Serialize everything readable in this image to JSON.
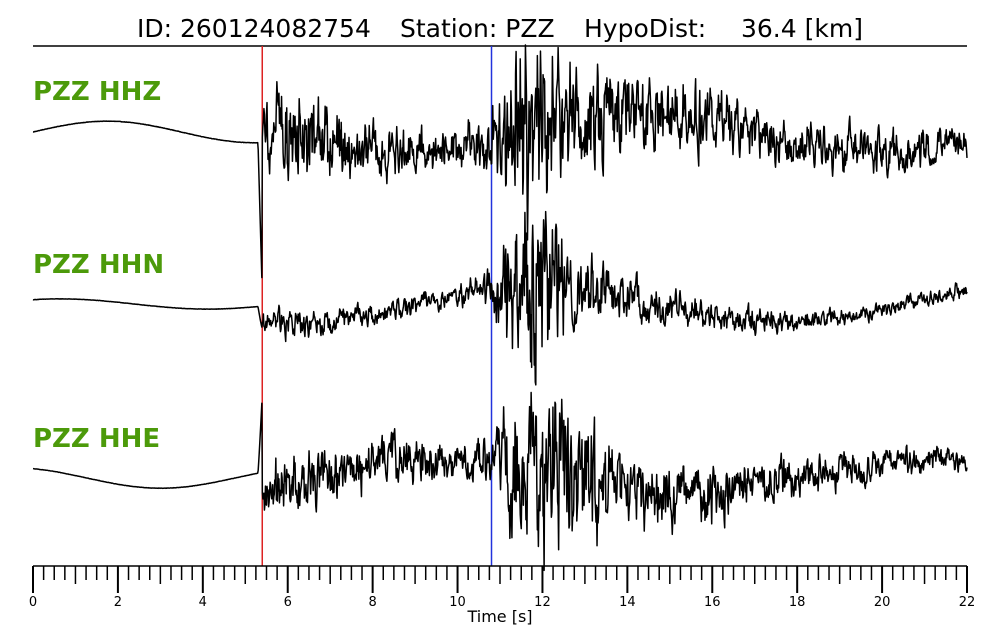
{
  "header": {
    "id_text": "ID: 260124082754",
    "station_text": "Station: PZZ",
    "hypodist_label": "HypoDist:",
    "hypodist_value": "36.4 [km]"
  },
  "colors": {
    "trace": "#000000",
    "channel_label": "#4c9a0a",
    "p_pick": "#dd2222",
    "s_pick": "#2233dd"
  },
  "chart_data": {
    "type": "line",
    "title": "ID: 260124082754   Station: PZZ   HypoDist:    36.4 [km]",
    "xlabel": "Time [s]",
    "xlim": [
      0,
      22
    ],
    "x_ticks": [
      0,
      2,
      4,
      6,
      8,
      10,
      12,
      14,
      16,
      18,
      20,
      22
    ],
    "minor_tick_step": 0.25,
    "grid": false,
    "picks": [
      {
        "phase": "P",
        "time": 5.4,
        "color": "#dd2222"
      },
      {
        "phase": "S",
        "time": 10.8,
        "color": "#2233dd"
      }
    ],
    "series": [
      {
        "name": "PZZ HHZ",
        "peak_amplitude": 1.0,
        "envelope": {
          "time": [
            0,
            5.3,
            5.4,
            6,
            8,
            10,
            10.8,
            11.3,
            11.6,
            12.1,
            12.6,
            14,
            16,
            18,
            20,
            22
          ],
          "amplitude": [
            0.02,
            0.02,
            0.3,
            0.48,
            0.25,
            0.22,
            0.3,
            0.95,
            1.0,
            0.9,
            0.6,
            0.38,
            0.33,
            0.22,
            0.2,
            0.14
          ]
        }
      },
      {
        "name": "PZZ HHN",
        "peak_amplitude": 1.0,
        "envelope": {
          "time": [
            0,
            5.3,
            5.4,
            6,
            8,
            10,
            10.8,
            11.3,
            11.6,
            12.1,
            12.6,
            14,
            16,
            18,
            20,
            22
          ],
          "amplitude": [
            0.01,
            0.01,
            0.12,
            0.16,
            0.1,
            0.1,
            0.18,
            0.9,
            1.0,
            0.95,
            0.4,
            0.22,
            0.15,
            0.1,
            0.08,
            0.08
          ]
        }
      },
      {
        "name": "PZZ HHE",
        "peak_amplitude": 1.0,
        "envelope": {
          "time": [
            0,
            5.3,
            5.4,
            6,
            8,
            10,
            10.8,
            11.3,
            11.6,
            12.1,
            12.6,
            14,
            16,
            18,
            20,
            22
          ],
          "amplitude": [
            0.02,
            0.02,
            0.3,
            0.35,
            0.25,
            0.18,
            0.25,
            0.85,
            1.0,
            0.95,
            0.8,
            0.35,
            0.3,
            0.2,
            0.15,
            0.1
          ]
        }
      }
    ]
  }
}
